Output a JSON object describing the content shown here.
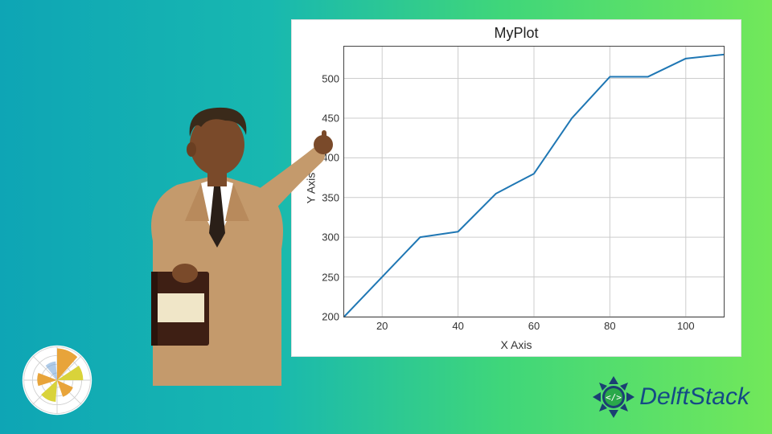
{
  "background": {
    "gradient_start": "#0ea5b5",
    "gradient_end": "#72e85a"
  },
  "chart": {
    "type": "line",
    "title": "MyPlot",
    "title_fontsize": 18,
    "xlabel": "X Axis",
    "ylabel": "Y Axis",
    "label_fontsize": 14,
    "xlim": [
      10,
      110
    ],
    "ylim": [
      200,
      540
    ],
    "xticks": [
      20,
      40,
      60,
      80,
      100
    ],
    "yticks": [
      200,
      250,
      300,
      350,
      400,
      450,
      500
    ],
    "x": [
      10,
      20,
      30,
      40,
      50,
      60,
      70,
      80,
      90,
      100,
      110
    ],
    "y": [
      200,
      250,
      300,
      307,
      355,
      380,
      450,
      502,
      502,
      525,
      530
    ],
    "line_color": "#1f77b4",
    "line_width": 2,
    "grid_color": "#cccccc",
    "background_color": "#ffffff",
    "border_color": "#444444",
    "tick_label_color": "#333333"
  },
  "brand": {
    "name": "DelftStack",
    "text_color": "#144a86",
    "accent_color": "#2aa84a",
    "badge_color": "#1b3f73"
  },
  "polar_icon": {
    "ring_color": "#d8d8d8",
    "wedge_colors": [
      "#e8a43a",
      "#d9d33a",
      "#7aa8d8"
    ],
    "background": "#ffffff"
  },
  "person": {
    "suit_color": "#c49a6c",
    "skin_color": "#7a4a2a",
    "hair_color": "#3a2a1a",
    "shirt_color": "#ffffff",
    "tie_color": "#2a1f18",
    "book_cover": "#3e1f14",
    "book_band": "#f0e6c8"
  }
}
